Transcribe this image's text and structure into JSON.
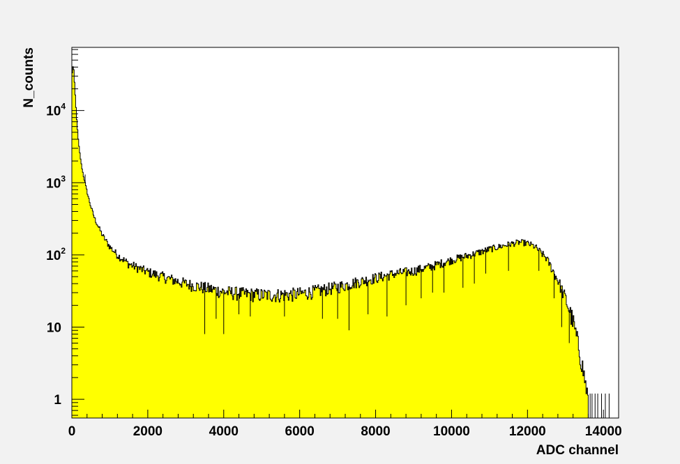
{
  "chart_data": {
    "type": "histogram",
    "title": "",
    "xlabel": "ADC channel",
    "ylabel": "N_counts",
    "xlim": [
      0,
      14400
    ],
    "ylim": [
      0.55,
      75000
    ],
    "y_scale": "log",
    "grid": false,
    "legend": "none",
    "fill_color": "#ffff00",
    "line_color": "#000000",
    "background_color": "#f2f2f2",
    "plot_background_color": "#ffffff",
    "x_ticks": [
      0,
      2000,
      4000,
      6000,
      8000,
      10000,
      12000,
      14000
    ],
    "x_tick_labels": [
      "0",
      "2000",
      "4000",
      "6000",
      "8000",
      "10000",
      "12000",
      "14000"
    ],
    "y_ticks": [
      {
        "value": 1,
        "base": "1",
        "exp": ""
      },
      {
        "value": 10,
        "base": "10",
        "exp": ""
      },
      {
        "value": 100,
        "base": "10",
        "exp": "2"
      },
      {
        "value": 1000,
        "base": "10",
        "exp": "3"
      },
      {
        "value": 10000,
        "base": "10",
        "exp": "4"
      }
    ],
    "envelope_x": [
      0,
      40,
      80,
      120,
      160,
      200,
      250,
      300,
      400,
      500,
      600,
      800,
      1000,
      1200,
      1500,
      2000,
      2500,
      3000,
      3500,
      4000,
      4500,
      5000,
      5500,
      6000,
      6500,
      7000,
      7500,
      8000,
      8500,
      9000,
      9500,
      10000,
      10500,
      11000,
      11500,
      11800,
      12000,
      12200,
      12500,
      12800,
      13000,
      13200,
      13400,
      13500,
      13600
    ],
    "envelope_y": [
      30000,
      45000,
      20000,
      9000,
      4500,
      2800,
      1800,
      1300,
      750,
      470,
      320,
      190,
      130,
      100,
      75,
      58,
      48,
      40,
      35,
      31,
      29,
      28,
      28,
      29,
      32,
      36,
      42,
      48,
      55,
      60,
      70,
      85,
      100,
      120,
      140,
      150,
      145,
      130,
      90,
      45,
      25,
      12,
      4,
      2,
      1
    ],
    "dips": [
      {
        "x": 350,
        "y": 1300,
        "direction": "up"
      },
      {
        "x": 3500,
        "y": 8
      },
      {
        "x": 4000,
        "y": 8
      },
      {
        "x": 3800,
        "y": 13
      },
      {
        "x": 4400,
        "y": 15
      },
      {
        "x": 4700,
        "y": 14
      },
      {
        "x": 5600,
        "y": 14
      },
      {
        "x": 6600,
        "y": 13
      },
      {
        "x": 7000,
        "y": 13
      },
      {
        "x": 7300,
        "y": 9
      },
      {
        "x": 7800,
        "y": 15
      },
      {
        "x": 8300,
        "y": 14
      },
      {
        "x": 8800,
        "y": 20
      },
      {
        "x": 9200,
        "y": 25
      },
      {
        "x": 9500,
        "y": 30
      },
      {
        "x": 9800,
        "y": 30
      },
      {
        "x": 10300,
        "y": 35
      },
      {
        "x": 10600,
        "y": 40
      },
      {
        "x": 10900,
        "y": 55
      },
      {
        "x": 11500,
        "y": 60
      },
      {
        "x": 12300,
        "y": 60
      },
      {
        "x": 12700,
        "y": 25
      },
      {
        "x": 12900,
        "y": 10
      },
      {
        "x": 13100,
        "y": 6
      }
    ],
    "tail_bins": [
      13650,
      13700,
      13780,
      13850,
      13950,
      14050,
      14150
    ]
  }
}
